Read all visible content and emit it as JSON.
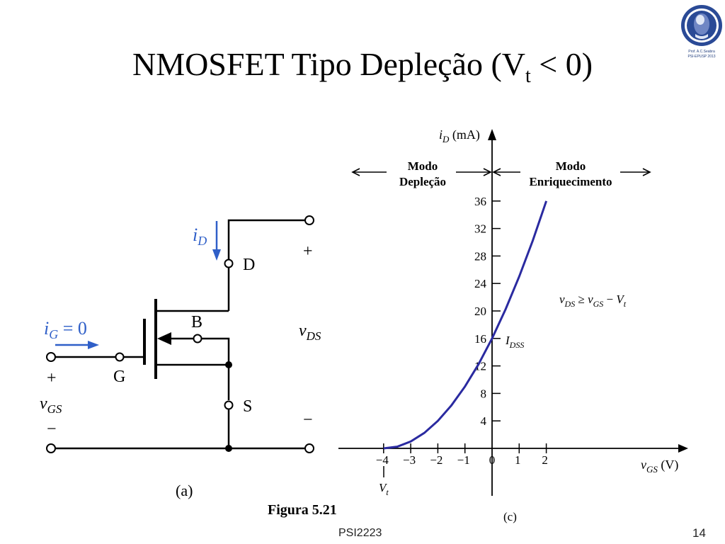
{
  "slide": {
    "title_main": "NMOSFET Tipo Depleção (V",
    "title_sub": "t",
    "title_end": " < 0)",
    "figure_caption": "Figura 5.21",
    "footer": "PSI2223",
    "page_number": "14"
  },
  "logo": {
    "line1": "Prof. A.C.Seabra",
    "line2": "PSI-EPUSP 2013",
    "color": "#23407f"
  },
  "circuit": {
    "label": "(a)",
    "i_d": "i",
    "i_d_sub": "D",
    "i_g_text": "i",
    "i_g_sub": "G",
    "i_g_value": " = 0",
    "drain": "D",
    "gate": "G",
    "source": "S",
    "body": "B",
    "v_ds": "v",
    "v_ds_sub": "DS",
    "v_gs": "v",
    "v_gs_sub": "GS",
    "plus": "+",
    "minus": "−",
    "arrow_color": "#2f5fc8"
  },
  "chart_data": {
    "type": "line",
    "label": "(c)",
    "ylabel": "i",
    "ylabel_sub": "D",
    "ylabel_unit": " (mA)",
    "xlabel": "v",
    "xlabel_sub": "GS",
    "xlabel_unit": " (V)",
    "x_ticks": [
      "−4",
      "−3",
      "−2",
      "−1",
      "0",
      "1",
      "2"
    ],
    "y_ticks": [
      "4",
      "8",
      "12",
      "16",
      "20",
      "24",
      "28",
      "32",
      "36"
    ],
    "vt_label": "V",
    "vt_sub": "t",
    "idss_label": "I",
    "idss_sub": "DSS",
    "condition": {
      "v1": "v",
      "v1_sub": "DS",
      "geq": " ≥ ",
      "v2": "v",
      "v2_sub": "GS",
      "minus": " − ",
      "v3": "V",
      "v3_sub": "t"
    },
    "mode_left": [
      "Modo",
      "Depleção"
    ],
    "mode_right": [
      "Modo",
      "Enriquecimento"
    ],
    "curve_color": "#2a2aa0",
    "series": [
      {
        "x": [
          -4,
          -3.5,
          -3,
          -2.5,
          -2,
          -1.5,
          -1,
          -0.5,
          0,
          0.5,
          1,
          1.5,
          2
        ],
        "y": [
          0,
          0.25,
          1,
          2.25,
          4,
          6.25,
          9,
          12.25,
          16,
          20.25,
          25,
          30.25,
          36
        ]
      }
    ]
  }
}
